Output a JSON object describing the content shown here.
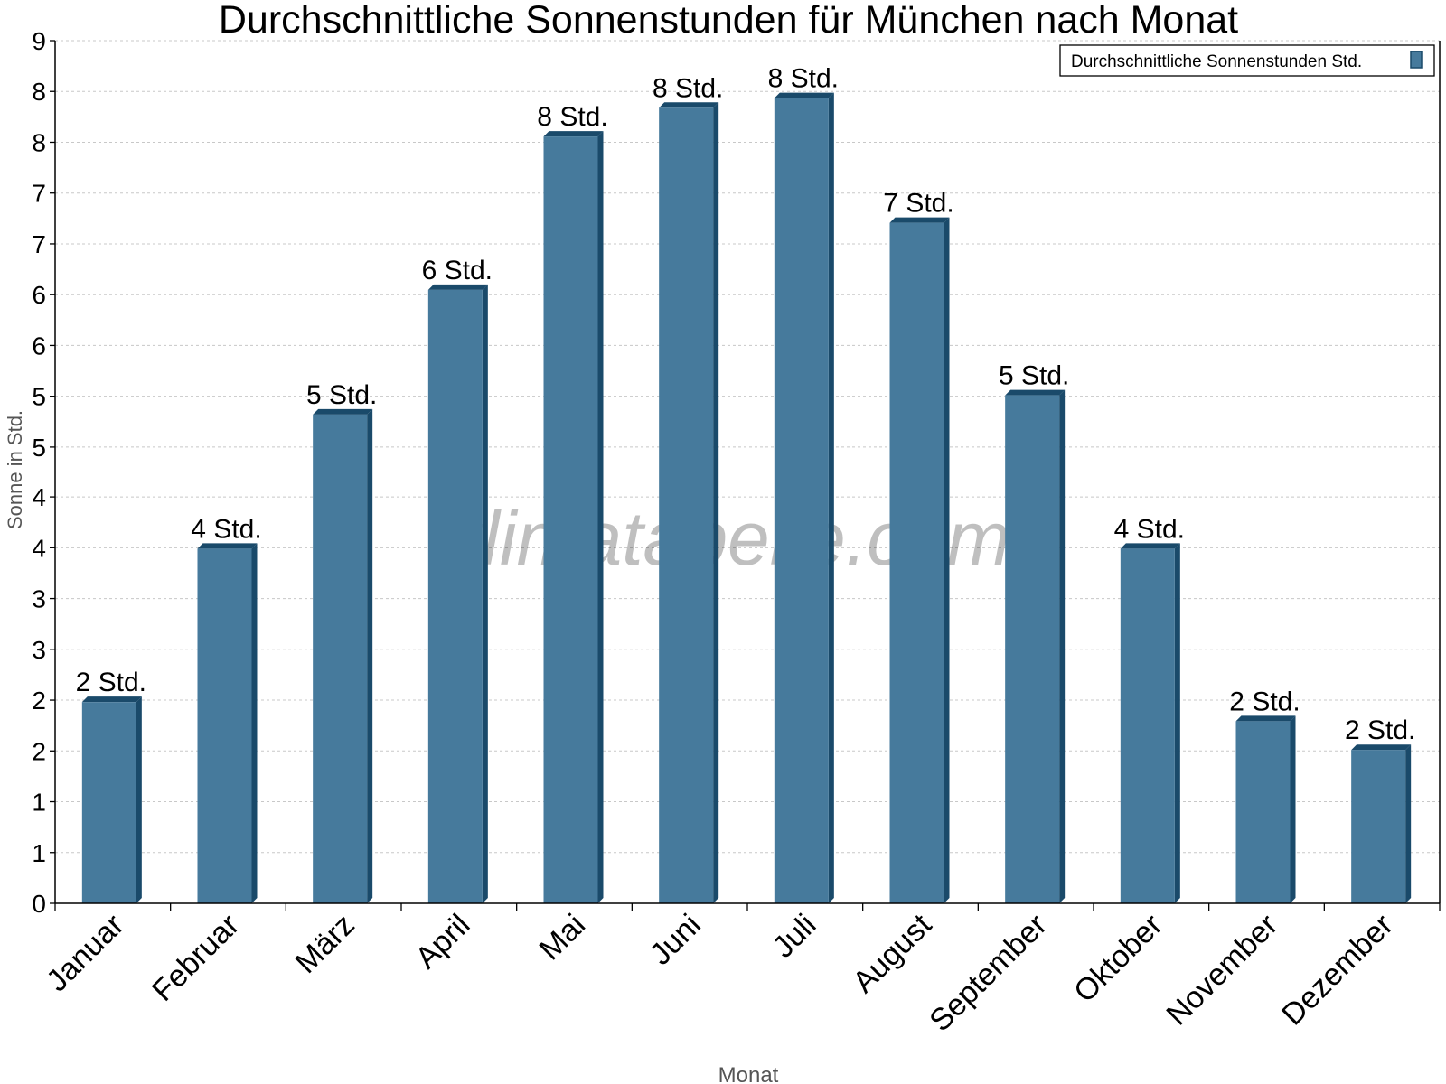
{
  "chart_data": {
    "type": "bar",
    "title": "Durchschnittliche Sonnenstunden für München nach Monat",
    "xlabel": "Monat",
    "ylabel": "Sonne in Std.",
    "categories": [
      "Januar",
      "Februar",
      "März",
      "April",
      "Mai",
      "Juni",
      "Juli",
      "August",
      "September",
      "Oktober",
      "November",
      "Dezember"
    ],
    "series": [
      {
        "name": "Durchschnittliche Sonnenstunden Std.",
        "values": [
          2.1,
          3.7,
          5.1,
          6.4,
          8.0,
          8.3,
          8.4,
          7.1,
          5.3,
          3.7,
          1.9,
          1.6
        ],
        "data_labels": [
          "2 Std.",
          "4 Std.",
          "5 Std.",
          "6 Std.",
          "8 Std.",
          "8 Std.",
          "8 Std.",
          "7 Std.",
          "5 Std.",
          "4 Std.",
          "2 Std.",
          "2 Std."
        ]
      }
    ],
    "ylim": [
      0,
      9
    ],
    "yticks": [
      0,
      0.53,
      1.06,
      1.59,
      2.12,
      2.65,
      3.18,
      3.71,
      4.24,
      4.76,
      5.29,
      5.82,
      6.35,
      6.88,
      7.41,
      7.94,
      8.47,
      9
    ],
    "ytick_labels": [
      "0",
      "1",
      "1",
      "2",
      "2",
      "3",
      "3",
      "4",
      "4",
      "5",
      "5",
      "6",
      "6",
      "7",
      "7",
      "8",
      "8",
      "9"
    ],
    "grid": true,
    "legend": "top-right",
    "watermark": "klimatabelle.com",
    "colors": {
      "bar": "#467a9c",
      "bar_side": "#1a4a6a",
      "grid": "#c8c8c8"
    }
  }
}
